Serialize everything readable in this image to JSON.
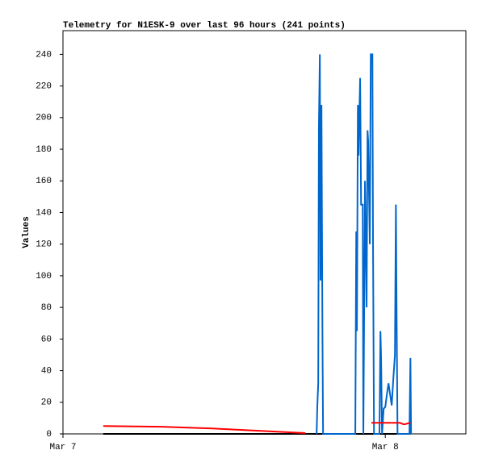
{
  "chart_data": {
    "type": "line",
    "title": "Telemetry for N1ESK-9 over last 96 hours (241 points)",
    "y_label": "Values",
    "xlim": [
      0,
      1.25
    ],
    "xticks": [
      {
        "value": 0,
        "label": "Mar 7"
      },
      {
        "value": 1,
        "label": "Mar 8"
      }
    ],
    "ylim": [
      0,
      255
    ],
    "yticks": [
      0,
      20,
      40,
      60,
      80,
      100,
      120,
      140,
      160,
      180,
      200,
      220,
      240
    ],
    "grid": false,
    "series": [
      {
        "color": "#000000",
        "x": [
          0.125,
          1.078
        ],
        "values": [
          0,
          0
        ]
      },
      {
        "color": "#0066cc",
        "x": [
          0.787,
          0.789,
          0.792,
          0.794,
          0.797,
          0.799,
          0.802,
          0.805,
          0.807,
          0.907,
          0.91,
          0.912,
          0.915,
          0.917,
          0.922,
          0.925,
          0.93,
          0.932,
          0.937,
          0.942,
          0.945,
          0.947,
          0.952,
          0.955,
          0.96,
          0.962,
          0.965,
          0.982,
          0.985,
          0.987,
          0.99,
          0.995,
          1.0,
          1.005,
          1.01,
          1.015,
          1.02,
          1.025,
          1.03,
          1.033,
          1.035,
          1.038,
          1.075,
          1.078,
          1.08
        ],
        "values": [
          0,
          17,
          32,
          193,
          240,
          97,
          208,
          65,
          0,
          0,
          128,
          65,
          208,
          176,
          225,
          145,
          145,
          0,
          160,
          80,
          192,
          185,
          120,
          240,
          240,
          120,
          0,
          0,
          65,
          48,
          0,
          16,
          17,
          25,
          32,
          25,
          18,
          35,
          50,
          145,
          80,
          0,
          0,
          48,
          0
        ]
      },
      {
        "color": "#ff0000",
        "x": [
          0.125,
          0.306,
          0.456,
          0.607,
          0.752,
          0.85,
          0.957,
          1.045,
          1.058,
          1.078
        ],
        "values": [
          5,
          4.5,
          3.5,
          2,
          0.5,
          null,
          7,
          7,
          6,
          7
        ]
      }
    ]
  }
}
